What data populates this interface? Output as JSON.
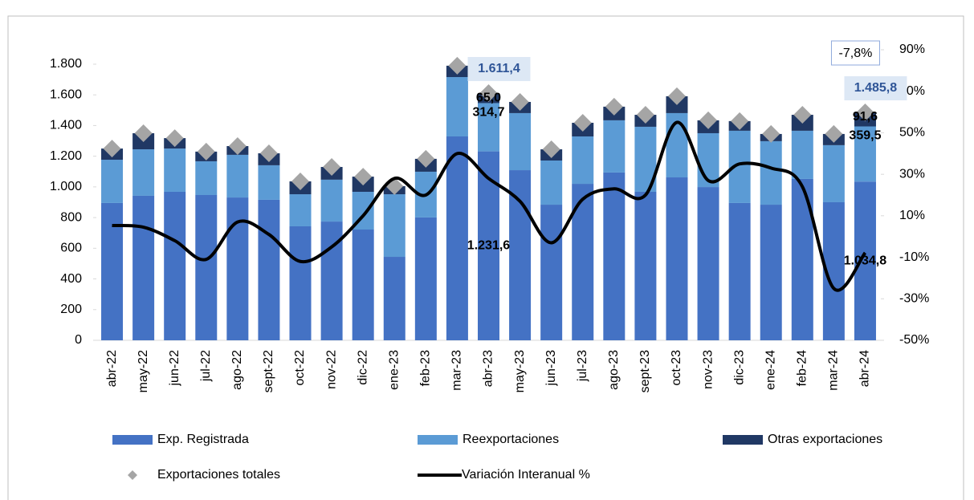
{
  "chart_data": {
    "type": "bar",
    "categories": [
      "abr-22",
      "may-22",
      "jun-22",
      "jul-22",
      "ago-22",
      "sept-22",
      "oct-22",
      "nov-22",
      "dic-22",
      "ene-23",
      "feb-23",
      "mar-23",
      "abr-23",
      "may-23",
      "jun-23",
      "jul-23",
      "ago-23",
      "sept-23",
      "oct-23",
      "nov-23",
      "dic-23",
      "ene-24",
      "feb-24",
      "mar-24",
      "abr-24"
    ],
    "series": [
      {
        "name": "Exp. Registrada",
        "type": "bar",
        "color": "#4472c4",
        "values": [
          895,
          942,
          968,
          947,
          931,
          916,
          743,
          774,
          722,
          544,
          801,
          1329,
          1231.6,
          1109,
          884,
          1020,
          1094,
          968,
          1062,
          999,
          895,
          884,
          1052,
          900,
          1034.8
        ],
        "value_labels": [
          null,
          null,
          null,
          null,
          null,
          null,
          null,
          null,
          null,
          null,
          null,
          null,
          "1.231,6",
          null,
          null,
          null,
          null,
          null,
          null,
          null,
          null,
          null,
          null,
          null,
          "1.034,8"
        ]
      },
      {
        "name": "Reexportaciones",
        "type": "bar",
        "color": "#5b9bd5",
        "values": [
          282,
          303,
          282,
          220,
          278,
          225,
          209,
          273,
          246,
          408,
          298,
          387,
          314.7,
          372,
          288,
          309,
          340,
          424,
          419,
          351,
          471,
          414,
          314,
          372,
          359.5
        ],
        "value_labels": [
          null,
          null,
          null,
          null,
          null,
          null,
          null,
          null,
          null,
          null,
          null,
          null,
          "314,7",
          null,
          null,
          null,
          null,
          null,
          null,
          null,
          null,
          null,
          null,
          null,
          "359,5"
        ]
      },
      {
        "name": "Otras exportaciones",
        "type": "bar",
        "color": "#203864",
        "values": [
          73,
          105,
          68,
          63,
          57,
          78,
          84,
          83,
          99,
          53,
          84,
          74,
          65.0,
          73,
          73,
          89,
          89,
          78,
          110,
          84,
          63,
          47,
          104,
          73,
          91.6
        ],
        "value_labels": [
          null,
          null,
          null,
          null,
          null,
          null,
          null,
          null,
          null,
          null,
          null,
          null,
          "65,0",
          null,
          null,
          null,
          null,
          null,
          null,
          null,
          null,
          null,
          null,
          null,
          "91,6"
        ]
      },
      {
        "name": "Exportaciones  totales",
        "type": "scatter",
        "color": "#a5a5a5",
        "values": [
          1250,
          1350,
          1318,
          1230,
          1266,
          1219,
          1036,
          1130,
          1067,
          1005,
          1183,
          1790,
          1611.4,
          1554,
          1245,
          1418,
          1523,
          1470,
          1591,
          1434,
          1429,
          1345,
          1470,
          1345,
          1485.8
        ],
        "value_labels": [
          null,
          null,
          null,
          null,
          null,
          null,
          null,
          null,
          null,
          null,
          null,
          null,
          "1.611,4",
          null,
          null,
          null,
          null,
          null,
          null,
          null,
          null,
          null,
          null,
          null,
          "1.485,8"
        ]
      },
      {
        "name": "Variación Interanual %",
        "type": "line",
        "color": "#000000",
        "axis": "y2",
        "values": [
          5.3,
          4.5,
          -2,
          -11,
          7,
          1,
          -12,
          -5,
          10,
          28,
          20,
          40,
          28,
          17,
          -3,
          18,
          23,
          20,
          55,
          27,
          35,
          33,
          24,
          -25,
          -7.8
        ],
        "value_labels": [
          null,
          null,
          null,
          null,
          null,
          null,
          null,
          null,
          null,
          null,
          null,
          null,
          null,
          null,
          null,
          null,
          null,
          null,
          null,
          null,
          null,
          null,
          null,
          null,
          "-7,8%"
        ]
      }
    ],
    "ylim": [
      0,
      1894
    ],
    "yticks": [
      0,
      200,
      400,
      600,
      800,
      {
        "value": 1000,
        "label": "1.000"
      },
      {
        "value": 1200,
        "label": "1.200"
      },
      {
        "value": 1400,
        "label": "1.400"
      },
      {
        "value": 1600,
        "label": "1.600"
      },
      {
        "value": 1800,
        "label": "1.800"
      }
    ],
    "y2lim": [
      -50,
      90
    ],
    "y2ticks": [
      {
        "value": -50,
        "label": "-50%"
      },
      {
        "value": -30,
        "label": "-30%"
      },
      {
        "value": -10,
        "label": "-10%"
      },
      {
        "value": 10,
        "label": "10%"
      },
      {
        "value": 30,
        "label": "30%"
      },
      {
        "value": 50,
        "label": "50%"
      },
      {
        "value": 70,
        "label": "70%"
      },
      {
        "value": 90,
        "label": "90%"
      }
    ],
    "legend": "bottom"
  }
}
